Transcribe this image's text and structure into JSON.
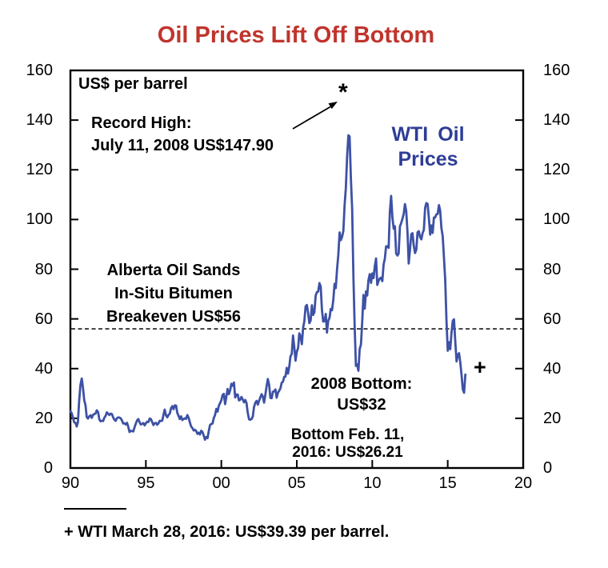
{
  "title": "Oil Prices Lift Off Bottom",
  "colors": {
    "title": "#C0342C",
    "series_line": "#3D51A5",
    "series_label": "#2E3D96",
    "axis": "#000000",
    "background": "#FFFFFF"
  },
  "annotations": {
    "units_label": "US$ per barrel",
    "record_high": {
      "line1": "Record High:",
      "line2": "July 11, 2008 US$147.90",
      "marker": "*"
    },
    "series_label": {
      "line1": "WTI Oil",
      "line2": "Prices"
    },
    "breakeven": {
      "line1": "Alberta Oil Sands",
      "line2": "In-Situ Bitumen",
      "line3": "Breakeven US$56"
    },
    "bottom_2008": {
      "line1": "2008 Bottom:",
      "line2": "US$32"
    },
    "bottom_2016": {
      "line1": "Bottom Feb. 11,",
      "line2": "2016: US$26.21"
    },
    "latest_marker": "+"
  },
  "footnote": {
    "text": "+ WTI March 28, 2016: US$39.39 per barrel."
  },
  "chart_data": {
    "type": "line",
    "title": "Oil Prices Lift Off Bottom",
    "units": "US$ per barrel",
    "xlabel": "",
    "ylabel": "US$ per barrel",
    "xlim": [
      1990,
      2020
    ],
    "ylim": [
      0,
      160
    ],
    "grid": false,
    "x_tick_labels": [
      "90",
      "95",
      "00",
      "05",
      "10",
      "15",
      "20"
    ],
    "x_tick_years": [
      1990,
      1995,
      2000,
      2005,
      2010,
      2015,
      2020
    ],
    "y_ticks": [
      0,
      20,
      40,
      60,
      80,
      100,
      120,
      140,
      160
    ],
    "reference_line": {
      "value": 56,
      "style": "dashed",
      "label": "Alberta Oil Sands In-Situ Bitumen Breakeven US$56"
    },
    "points_of_interest": [
      {
        "label": "Record High",
        "date": "July 11, 2008",
        "value": 147.9,
        "marker": "*"
      },
      {
        "label": "2008 Bottom",
        "value": 32
      },
      {
        "label": "Bottom",
        "date": "Feb. 11, 2016",
        "value": 26.21
      },
      {
        "label": "WTI latest",
        "date": "March 28, 2016",
        "value": 39.39,
        "marker": "+"
      }
    ],
    "series": [
      {
        "name": "WTI Oil Prices",
        "color": "#3D51A5",
        "start_year": 1990,
        "frequency": "monthly",
        "values": [
          22.9,
          22.1,
          20.4,
          18.4,
          18.2,
          16.7,
          18.4,
          27.3,
          33.5,
          36.0,
          32.3,
          27.3,
          25.2,
          20.5,
          19.9,
          20.8,
          21.2,
          20.2,
          21.4,
          21.7,
          21.9,
          23.2,
          22.5,
          19.5,
          18.8,
          19.0,
          18.9,
          20.2,
          21.0,
          22.4,
          21.8,
          21.3,
          21.9,
          21.7,
          20.3,
          19.4,
          19.0,
          20.1,
          20.3,
          20.3,
          20.0,
          19.1,
          17.9,
          18.0,
          17.5,
          18.2,
          16.6,
          14.5,
          15.0,
          14.8,
          14.7,
          16.4,
          17.9,
          19.1,
          19.7,
          18.4,
          17.5,
          17.7,
          18.1,
          17.2,
          18.0,
          18.6,
          18.5,
          19.9,
          19.7,
          18.5,
          17.3,
          18.0,
          18.2,
          17.4,
          18.0,
          19.0,
          18.9,
          19.1,
          21.3,
          23.5,
          21.2,
          20.4,
          21.3,
          21.9,
          24.0,
          24.9,
          23.7,
          25.2,
          25.1,
          22.2,
          21.0,
          19.7,
          20.8,
          19.3,
          19.7,
          20.0,
          19.8,
          21.3,
          20.2,
          18.3,
          16.7,
          16.1,
          15.1,
          15.4,
          14.9,
          13.7,
          14.2,
          13.5,
          15.0,
          14.5,
          13.0,
          11.4,
          12.5,
          12.0,
          14.7,
          17.3,
          17.7,
          17.9,
          20.1,
          21.3,
          23.8,
          22.7,
          25.0,
          26.1,
          27.3,
          29.4,
          29.8,
          25.7,
          28.8,
          31.8,
          29.7,
          31.3,
          33.9,
          33.1,
          34.4,
          28.4,
          29.6,
          29.6,
          27.2,
          27.5,
          28.6,
          27.6,
          26.4,
          27.4,
          26.2,
          22.2,
          19.6,
          19.4,
          19.7,
          20.7,
          24.5,
          26.2,
          27.0,
          25.5,
          27.0,
          28.4,
          29.7,
          28.8,
          26.3,
          29.5,
          33.0,
          35.8,
          33.5,
          28.2,
          28.1,
          30.7,
          30.8,
          31.6,
          28.3,
          30.3,
          31.1,
          32.1,
          34.3,
          34.7,
          36.7,
          36.8,
          40.3,
          38.0,
          40.8,
          44.9,
          45.9,
          53.3,
          48.5,
          43.2,
          46.8,
          48.2,
          54.2,
          53.0,
          49.8,
          56.4,
          59.0,
          65.0,
          65.6,
          62.3,
          58.3,
          59.4,
          65.5,
          61.6,
          62.7,
          69.4,
          70.8,
          71.0,
          74.4,
          73.0,
          63.8,
          58.9,
          59.1,
          62.0,
          54.5,
          59.3,
          60.4,
          64.0,
          63.5,
          67.5,
          74.1,
          72.4,
          79.9,
          85.8,
          94.8,
          91.7,
          93.0,
          95.4,
          105.5,
          112.6,
          125.4,
          133.9,
          133.4,
          116.7,
          104.1,
          76.6,
          57.3,
          41.1,
          41.7,
          39.1,
          47.9,
          49.7,
          59.0,
          69.6,
          64.1,
          71.1,
          69.4,
          75.7,
          78.0,
          74.5,
          78.3,
          76.4,
          81.2,
          84.3,
          73.7,
          75.3,
          76.3,
          76.6,
          75.2,
          81.9,
          84.3,
          89.2,
          89.2,
          88.6,
          102.9,
          109.5,
          100.9,
          96.3,
          97.3,
          86.3,
          85.5,
          86.3,
          97.2,
          98.6,
          100.3,
          102.2,
          106.2,
          103.3,
          94.7,
          82.3,
          87.9,
          94.1,
          94.5,
          89.5,
          86.5,
          87.9,
          94.8,
          95.3,
          92.9,
          92.0,
          94.5,
          95.8,
          104.7,
          106.6,
          106.3,
          100.5,
          93.9,
          97.6,
          94.6,
          100.8,
          100.8,
          102.1,
          102.2,
          105.8,
          103.6,
          96.5,
          93.2,
          84.4,
          75.8,
          59.3,
          47.2,
          50.6,
          47.8,
          54.5,
          59.3,
          59.8,
          50.9,
          42.9,
          45.5,
          46.2,
          42.4,
          37.2,
          31.7,
          30.3,
          37.6
        ]
      }
    ]
  }
}
